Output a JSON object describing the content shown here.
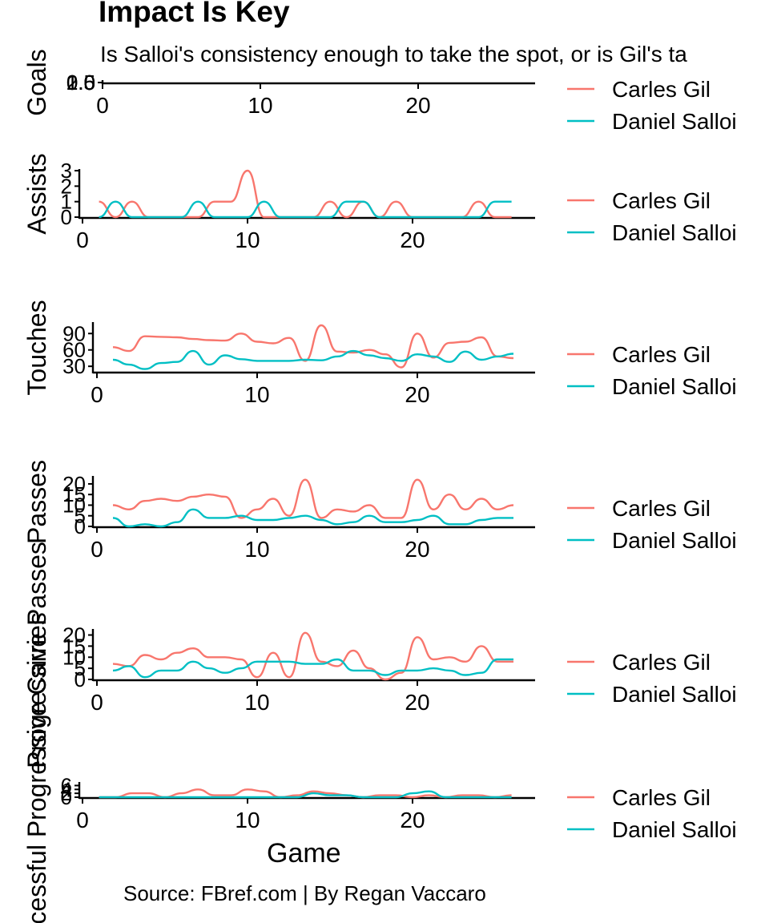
{
  "title": "Impact Is Key",
  "subtitle": "Is Salloi's consistency enough to take the spot, or is Gil's ta",
  "caption": "Source: FBref.com | By Regan Vaccaro",
  "chart_data": {
    "type": "line",
    "xlabel": "Game",
    "colors": {
      "Carles Gil": "#F8766D",
      "Daniel Salloi": "#00BFC4"
    },
    "legend": [
      "Carles Gil",
      "Daniel Salloi"
    ],
    "panels": [
      {
        "ylabel": "Goals",
        "yticks": [
          "0.0",
          "0.5",
          "1.0",
          "1.5",
          "2.0"
        ],
        "xticks": [
          0,
          10,
          20
        ],
        "series": [
          {
            "name": "Carles Gil",
            "x": [],
            "values": []
          },
          {
            "name": "Daniel Salloi",
            "x": [],
            "values": []
          }
        ]
      },
      {
        "ylabel": "Assists",
        "yticks": [
          0,
          1,
          2,
          3
        ],
        "xticks": [
          0,
          10,
          20
        ],
        "series": [
          {
            "name": "Carles Gil",
            "x": [
              1,
              2,
              3,
              4,
              5,
              6,
              7,
              8,
              9,
              10,
              11,
              12,
              13,
              14,
              15,
              16,
              17,
              18,
              19,
              20,
              21,
              22,
              23,
              24,
              25,
              26
            ],
            "values": [
              1,
              0,
              1,
              0,
              0,
              0,
              0,
              1,
              1,
              3,
              0,
              0,
              0,
              0,
              1,
              0,
              1,
              0,
              1,
              0,
              0,
              0,
              0,
              1,
              0,
              0
            ]
          },
          {
            "name": "Daniel Salloi",
            "x": [
              1,
              2,
              3,
              4,
              5,
              6,
              7,
              8,
              9,
              10,
              11,
              12,
              13,
              14,
              15,
              16,
              17,
              18,
              19,
              20,
              21,
              22,
              23,
              24,
              25,
              26
            ],
            "values": [
              0,
              1,
              0,
              0,
              0,
              0,
              1,
              0,
              0,
              0,
              1,
              0,
              0,
              0,
              0,
              1,
              1,
              0,
              0,
              0,
              0,
              0,
              0,
              0,
              1,
              1
            ]
          }
        ]
      },
      {
        "ylabel": "Touches",
        "yticks": [
          30,
          60,
          90
        ],
        "xticks": [
          0,
          10,
          20
        ],
        "series": [
          {
            "name": "Carles Gil",
            "x": [
              1,
              2,
              3,
              4,
              5,
              6,
              7,
              8,
              9,
              10,
              11,
              12,
              13,
              14,
              15,
              16,
              17,
              18,
              19,
              20,
              21,
              22,
              23,
              24,
              25,
              26
            ],
            "values": [
              65,
              58,
              85,
              84,
              83,
              80,
              78,
              77,
              90,
              75,
              72,
              82,
              40,
              105,
              57,
              55,
              60,
              52,
              28,
              90,
              46,
              73,
              75,
              83,
              48,
              45
            ]
          },
          {
            "name": "Daniel Salloi",
            "x": [
              1,
              2,
              3,
              4,
              5,
              6,
              7,
              8,
              9,
              10,
              11,
              12,
              13,
              14,
              15,
              16,
              17,
              18,
              19,
              20,
              21,
              22,
              23,
              24,
              25,
              26
            ],
            "values": [
              42,
              33,
              25,
              36,
              38,
              58,
              33,
              50,
              43,
              40,
              40,
              40,
              42,
              41,
              48,
              58,
              50,
              45,
              40,
              52,
              48,
              38,
              57,
              42,
              48,
              53
            ]
          }
        ]
      },
      {
        "ylabel": "Passes",
        "yticks": [
          0,
          5,
          10,
          15,
          20
        ],
        "xticks": [
          0,
          10,
          20
        ],
        "series": [
          {
            "name": "Carles Gil",
            "x": [
              1,
              2,
              3,
              4,
              5,
              6,
              7,
              8,
              9,
              10,
              11,
              12,
              13,
              14,
              15,
              16,
              17,
              18,
              19,
              20,
              21,
              22,
              23,
              24,
              25,
              26
            ],
            "values": [
              10,
              8,
              12,
              13,
              12,
              14,
              15,
              14,
              4,
              8,
              13,
              5,
              22,
              4,
              8,
              7,
              10,
              4,
              4,
              22,
              8,
              15,
              8,
              13,
              8,
              10
            ]
          },
          {
            "name": "Daniel Salloi",
            "x": [
              1,
              2,
              3,
              4,
              5,
              6,
              7,
              8,
              9,
              10,
              11,
              12,
              13,
              14,
              15,
              16,
              17,
              18,
              19,
              20,
              21,
              22,
              23,
              24,
              25,
              26
            ],
            "values": [
              4,
              0,
              1,
              0,
              2,
              8,
              4,
              4,
              5,
              3,
              3,
              4,
              5,
              3,
              1,
              2,
              5,
              2,
              2,
              3,
              5,
              1,
              1,
              3,
              4,
              4
            ]
          }
        ]
      },
      {
        "ylabel": "Progressive Passes",
        "yticks": [
          0,
          5,
          10,
          15,
          20
        ],
        "xticks": [
          0,
          10,
          20
        ],
        "series": [
          {
            "name": "Carles Gil",
            "x": [
              1,
              2,
              3,
              4,
              5,
              6,
              7,
              8,
              9,
              10,
              11,
              12,
              13,
              14,
              15,
              16,
              17,
              18,
              19,
              20,
              21,
              22,
              23,
              24,
              25,
              26
            ],
            "values": [
              7,
              6,
              11,
              9,
              12,
              14,
              10,
              10,
              9,
              1,
              12,
              1,
              21,
              8,
              6,
              13,
              5,
              0,
              3,
              19,
              9,
              10,
              8,
              15,
              8,
              8
            ]
          },
          {
            "name": "Daniel Salloi",
            "x": [
              1,
              2,
              3,
              4,
              5,
              6,
              7,
              8,
              9,
              10,
              11,
              12,
              13,
              14,
              15,
              16,
              17,
              18,
              19,
              20,
              21,
              22,
              23,
              24,
              25,
              26
            ],
            "values": [
              4,
              6,
              1,
              4,
              4,
              8,
              5,
              3,
              5,
              8,
              8,
              8,
              7,
              7,
              9,
              4,
              4,
              2,
              4,
              4,
              5,
              4,
              2,
              3,
              9,
              9
            ]
          }
        ]
      },
      {
        "ylabel": "Successful Progressive Carries",
        "yticks": [
          0,
          2,
          4,
          6
        ],
        "xticks": [
          0,
          10,
          20
        ],
        "series": [
          {
            "name": "Carles Gil",
            "x": [
              1,
              2,
              3,
              4,
              5,
              6,
              7,
              8,
              9,
              10,
              11,
              12,
              13,
              14,
              15,
              16,
              17,
              18,
              19,
              20,
              21,
              22,
              23,
              24,
              25,
              26
            ],
            "values": [
              0,
              0,
              2,
              2,
              0,
              2,
              4,
              1,
              1,
              4,
              3,
              0,
              1,
              3,
              2,
              1,
              0,
              1,
              1,
              0,
              1,
              0,
              1,
              1,
              0,
              1
            ]
          },
          {
            "name": "Daniel Salloi",
            "x": [
              1,
              2,
              3,
              4,
              5,
              6,
              7,
              8,
              9,
              10,
              11,
              12,
              13,
              14,
              15,
              16,
              17,
              18,
              19,
              20,
              21,
              22,
              23,
              24,
              25,
              26
            ],
            "values": [
              0,
              0,
              0,
              0,
              0,
              0,
              0,
              0,
              0,
              0,
              0,
              0,
              0,
              2,
              1,
              1,
              0,
              0,
              0,
              2,
              3,
              0,
              0,
              0,
              0,
              0
            ]
          }
        ]
      }
    ]
  }
}
